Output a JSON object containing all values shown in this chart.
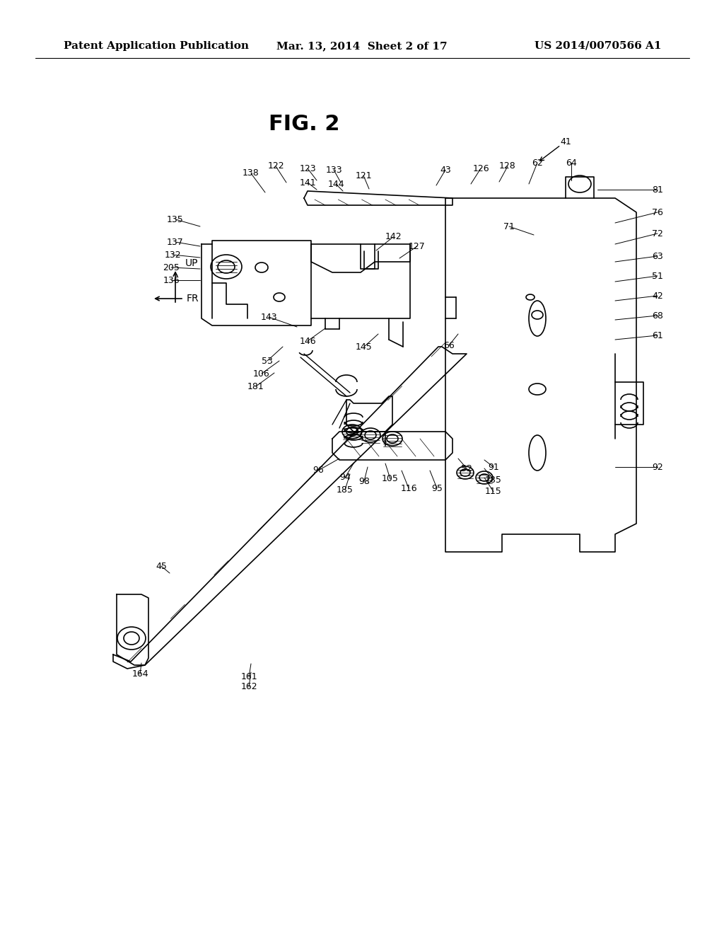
{
  "bg_color": "#ffffff",
  "header_left": "Patent Application Publication",
  "header_center": "Mar. 13, 2014  Sheet 2 of 17",
  "header_right": "US 2014/0070566 A1",
  "fig_label": "FIG. 2",
  "header_fontsize": 11,
  "fig_label_fontsize": 22,
  "lw": 1.2,
  "lw_thin": 0.5,
  "lw_leader": 0.7
}
